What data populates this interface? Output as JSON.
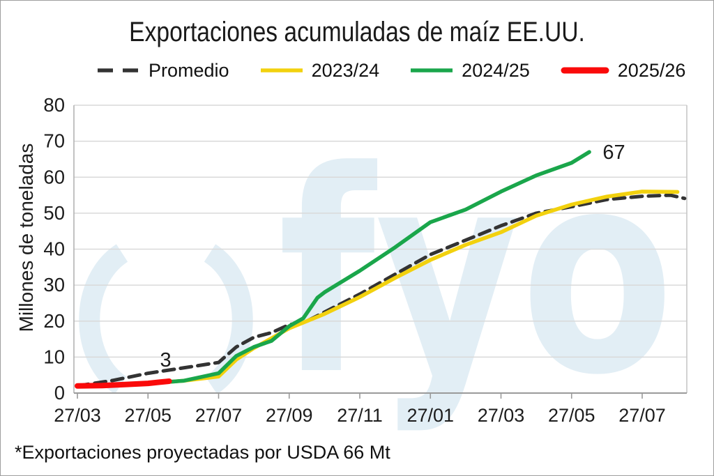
{
  "title": "Exportaciones acumuladas de maíz EE.UU.",
  "footnote": "*Exportaciones proyectadas por USDA 66 Mt",
  "watermark": "fyo",
  "colors": {
    "promedio": "#333333",
    "season_2023_24": "#F2D10E",
    "season_2024_25": "#1AA64B",
    "season_2025_26": "#FA0A0A",
    "gridline": "#D9D9D9",
    "axis": "#9A9A9A",
    "watermark": "#E2EEF5",
    "text": "#1C1C1C"
  },
  "legend": {
    "items": [
      {
        "label": "Promedio",
        "color": "#333333",
        "style": "dashed"
      },
      {
        "label": "2023/24",
        "color": "#F2D10E",
        "style": "solid"
      },
      {
        "label": "2024/25",
        "color": "#1AA64B",
        "style": "solid"
      },
      {
        "label": "2025/26",
        "color": "#FA0A0A",
        "style": "thick"
      }
    ]
  },
  "chart_data": {
    "type": "line",
    "title": "Exportaciones acumuladas de maíz EE.UU.",
    "xlabel": "",
    "ylabel": "Millones de toneladas",
    "ylim": [
      0,
      80
    ],
    "grid": true,
    "legend_position": "top",
    "y_ticks": [
      0,
      10,
      20,
      30,
      40,
      50,
      60,
      70,
      80
    ],
    "x_tick_labels": [
      "27/03",
      "27/05",
      "27/07",
      "27/09",
      "27/11",
      "27/01",
      "27/03",
      "27/05",
      "27/07"
    ],
    "x_unit": "months since 27/03 (one tick every 2 months)",
    "series": [
      {
        "name": "Promedio",
        "color": "#333333",
        "dash": true,
        "width": 5,
        "points": [
          [
            0,
            2
          ],
          [
            1,
            3.5
          ],
          [
            2,
            5.5
          ],
          [
            3,
            7
          ],
          [
            4,
            8.5
          ],
          [
            4.5,
            12.8
          ],
          [
            5,
            15.5
          ],
          [
            5.5,
            16.8
          ],
          [
            6,
            19
          ],
          [
            6.5,
            20
          ],
          [
            7,
            22.5
          ],
          [
            8,
            27.5
          ],
          [
            9,
            33
          ],
          [
            10,
            38.5
          ],
          [
            11,
            42.5
          ],
          [
            12,
            46.5
          ],
          [
            13,
            50
          ],
          [
            14,
            51.8
          ],
          [
            15,
            53.8
          ],
          [
            16,
            54.7
          ],
          [
            16.8,
            55
          ],
          [
            17.2,
            54.1
          ]
        ]
      },
      {
        "name": "2023/24",
        "color": "#F2D10E",
        "dash": false,
        "width": 5.5,
        "points": [
          [
            0,
            2
          ],
          [
            1,
            2.3
          ],
          [
            2,
            2.7
          ],
          [
            3,
            3.4
          ],
          [
            4,
            4.6
          ],
          [
            4.5,
            9.3
          ],
          [
            5,
            12.5
          ],
          [
            6,
            18
          ],
          [
            7,
            22
          ],
          [
            8,
            26.7
          ],
          [
            9,
            32
          ],
          [
            10,
            37
          ],
          [
            11,
            41.2
          ],
          [
            12,
            44.7
          ],
          [
            13,
            49.3
          ],
          [
            14,
            52.4
          ],
          [
            15,
            54.6
          ],
          [
            16,
            56
          ],
          [
            17,
            55.9
          ]
        ]
      },
      {
        "name": "2024/25",
        "color": "#1AA64B",
        "dash": false,
        "width": 5.5,
        "points": [
          [
            0,
            2
          ],
          [
            2,
            2.7
          ],
          [
            3,
            3.4
          ],
          [
            4,
            5.5
          ],
          [
            4.5,
            10.3
          ],
          [
            5,
            12.8
          ],
          [
            5.5,
            14.5
          ],
          [
            6,
            18.6
          ],
          [
            6.4,
            20.8
          ],
          [
            6.8,
            26.5
          ],
          [
            7,
            28
          ],
          [
            8,
            34
          ],
          [
            9,
            40.5
          ],
          [
            10,
            47.5
          ],
          [
            11,
            51
          ],
          [
            12,
            56
          ],
          [
            13,
            60.5
          ],
          [
            14,
            64
          ],
          [
            14.5,
            67
          ]
        ]
      },
      {
        "name": "2025/26",
        "color": "#FA0A0A",
        "dash": false,
        "width": 8,
        "points": [
          [
            0,
            2
          ],
          [
            0.7,
            2.1
          ],
          [
            1.4,
            2.4
          ],
          [
            2,
            2.7
          ],
          [
            2.3,
            3
          ],
          [
            2.6,
            3.3
          ]
        ]
      }
    ],
    "annotations": [
      {
        "label": "3",
        "x": 2.5,
        "y": 9.3
      },
      {
        "label": "67",
        "x": 15.2,
        "y": 67
      }
    ]
  }
}
